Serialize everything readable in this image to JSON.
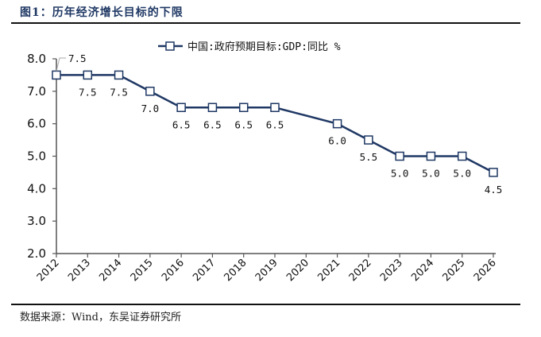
{
  "figure": {
    "title": "图1：历年经济增长目标的下限",
    "source": "数据来源：Wind，东吴证券研究所"
  },
  "chart_data": {
    "type": "line",
    "title": "",
    "xlabel": "",
    "ylabel": "",
    "categories": [
      "2012",
      "2013",
      "2014",
      "2015",
      "2016",
      "2017",
      "2018",
      "2019",
      "2020",
      "2021",
      "2022",
      "2023",
      "2024",
      "2025",
      "2026"
    ],
    "series": [
      {
        "name": "中国:政府预期目标:GDP:同比 %",
        "color": "#1f3864",
        "marker": "square-open",
        "values": [
          7.5,
          7.5,
          7.5,
          7.0,
          6.5,
          6.5,
          6.5,
          6.5,
          null,
          6.0,
          5.5,
          5.0,
          5.0,
          5.0,
          4.5
        ],
        "labels": [
          "7.5",
          "7.5",
          "7.5",
          "7.0",
          "6.5",
          "6.5",
          "6.5",
          "6.5",
          "",
          "6.0",
          "5.5",
          "5.0",
          "5.0",
          "5.0",
          "4.5"
        ]
      }
    ],
    "ylim": [
      2.0,
      8.0
    ],
    "yticks": [
      2.0,
      3.0,
      4.0,
      5.0,
      6.0,
      7.0,
      8.0
    ],
    "ytick_labels": [
      "2.0",
      "3.0",
      "4.0",
      "5.0",
      "6.0",
      "7.0",
      "8.0"
    ],
    "grid": false,
    "legend": "top-center",
    "x_tick_rotation": "-45deg"
  }
}
